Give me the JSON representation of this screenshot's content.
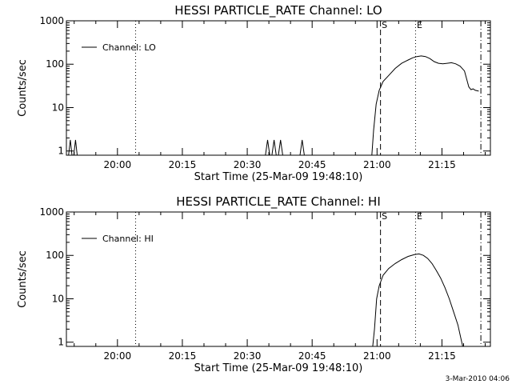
{
  "footer": {
    "timestamp": "3-Mar-2010 04:06"
  },
  "chart_data": [
    {
      "type": "line",
      "title": "HESSI PARTICLE_RATE Channel: LO",
      "xlabel": "Start Time (25-Mar-09 19:48:10)",
      "ylabel": "Counts/sec",
      "yscale": "log",
      "ylim": [
        0.8,
        1000
      ],
      "xlim_minutes": [
        0,
        98
      ],
      "x_tick_labels": [
        "20:00",
        "20:15",
        "20:30",
        "20:45",
        "21:00",
        "21:15"
      ],
      "y_tick_labels": [
        "1",
        "10",
        "100",
        "1000"
      ],
      "legend": {
        "label": "Channel: LO",
        "placement": "top-left"
      },
      "markers": [
        {
          "label": "",
          "minute": 16.0,
          "style": "dotted"
        },
        {
          "label": "S",
          "minute": 72.6,
          "style": "dashed"
        },
        {
          "label": "E",
          "minute": 80.7,
          "style": "dotted"
        },
        {
          "label": "",
          "minute": 95.8,
          "style": "dashdot"
        }
      ],
      "series": [
        {
          "name": "Channel: LO",
          "points": [
            [
              0,
              0.8
            ],
            [
              0.5,
              0.8
            ],
            [
              0.9,
              1.8
            ],
            [
              1.3,
              0.8
            ],
            [
              1.7,
              0.8
            ],
            [
              2.1,
              1.8
            ],
            [
              2.5,
              0.8
            ],
            [
              46.0,
              0.8
            ],
            [
              46.5,
              1.8
            ],
            [
              47.0,
              0.8
            ],
            [
              47.5,
              0.8
            ],
            [
              48.0,
              1.8
            ],
            [
              48.5,
              0.8
            ],
            [
              49.0,
              0.8
            ],
            [
              49.5,
              1.8
            ],
            [
              50.0,
              0.8
            ],
            [
              54.0,
              0.8
            ],
            [
              54.5,
              1.8
            ],
            [
              55.0,
              0.8
            ],
            [
              70.6,
              0.8
            ],
            [
              71.0,
              3
            ],
            [
              71.6,
              12
            ],
            [
              72.3,
              25
            ],
            [
              73.2,
              40
            ],
            [
              74.5,
              55
            ],
            [
              76.0,
              80
            ],
            [
              77.5,
              105
            ],
            [
              79.0,
              125
            ],
            [
              80.0,
              140
            ],
            [
              81.0,
              150
            ],
            [
              82.0,
              155
            ],
            [
              83.0,
              150
            ],
            [
              84.0,
              135
            ],
            [
              85.0,
              115
            ],
            [
              86.0,
              105
            ],
            [
              87.0,
              102
            ],
            [
              88.0,
              105
            ],
            [
              89.0,
              108
            ],
            [
              90.0,
              102
            ],
            [
              91.0,
              90
            ],
            [
              92.0,
              70
            ],
            [
              93.0,
              30
            ],
            [
              93.5,
              26
            ],
            [
              94.0,
              27
            ],
            [
              94.5,
              25
            ],
            [
              95.3,
              24
            ]
          ]
        }
      ]
    },
    {
      "type": "line",
      "title": "HESSI PARTICLE_RATE Channel: HI",
      "xlabel": "Start Time (25-Mar-09 19:48:10)",
      "ylabel": "Counts/sec",
      "yscale": "log",
      "ylim": [
        0.8,
        1000
      ],
      "xlim_minutes": [
        0,
        98
      ],
      "x_tick_labels": [
        "20:00",
        "20:15",
        "20:30",
        "20:45",
        "21:00",
        "21:15"
      ],
      "y_tick_labels": [
        "1",
        "10",
        "100",
        "1000"
      ],
      "legend": {
        "label": "Channel: HI",
        "placement": "top-left"
      },
      "markers": [
        {
          "label": "",
          "minute": 16.0,
          "style": "dotted"
        },
        {
          "label": "S",
          "minute": 72.6,
          "style": "dashed"
        },
        {
          "label": "E",
          "minute": 80.7,
          "style": "dotted"
        },
        {
          "label": "",
          "minute": 95.8,
          "style": "dashdot"
        }
      ],
      "series": [
        {
          "name": "Channel: HI",
          "points": [
            [
              70.8,
              0.8
            ],
            [
              71.2,
              2
            ],
            [
              71.7,
              10
            ],
            [
              72.3,
              20
            ],
            [
              73.2,
              35
            ],
            [
              74.5,
              50
            ],
            [
              76.0,
              65
            ],
            [
              77.5,
              80
            ],
            [
              79.0,
              95
            ],
            [
              80.5,
              105
            ],
            [
              81.5,
              108
            ],
            [
              82.5,
              100
            ],
            [
              83.5,
              85
            ],
            [
              84.5,
              65
            ],
            [
              85.5,
              45
            ],
            [
              86.5,
              30
            ],
            [
              87.5,
              18
            ],
            [
              88.5,
              10
            ],
            [
              89.5,
              5
            ],
            [
              90.5,
              2.5
            ],
            [
              91.2,
              1.2
            ],
            [
              91.6,
              0.8
            ]
          ]
        }
      ]
    }
  ]
}
